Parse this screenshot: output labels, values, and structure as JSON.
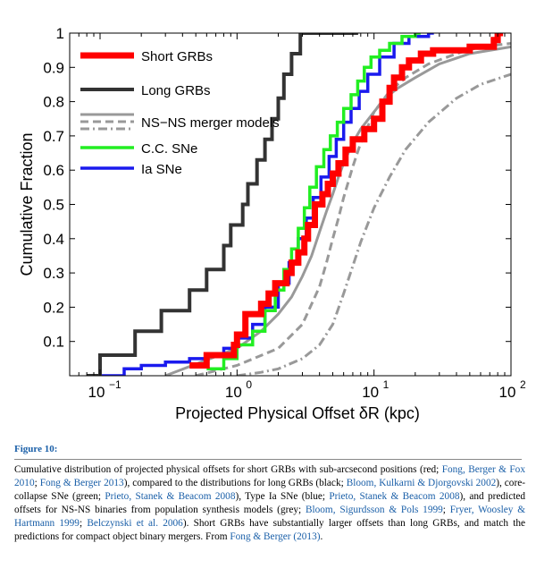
{
  "chart_data": {
    "type": "line",
    "xlabel": "Projected Physical Offset δR  (kpc)",
    "ylabel": "Cumulative Fraction",
    "xscale": "log",
    "xlim": [
      0.06,
      100
    ],
    "ylim": [
      0,
      1
    ],
    "x_ticks": [
      {
        "value": 0.1,
        "base": "10",
        "exp": "−1"
      },
      {
        "value": 1,
        "base": "10",
        "exp": "0"
      },
      {
        "value": 10,
        "base": "10",
        "exp": "1"
      },
      {
        "value": 100,
        "base": "10",
        "exp": "2"
      }
    ],
    "y_ticks": [
      "0.1",
      "0.2",
      "0.3",
      "0.4",
      "0.5",
      "0.6",
      "0.7",
      "0.8",
      "0.9",
      "1"
    ],
    "grid": false,
    "legend_position": "top-left",
    "series": [
      {
        "name": "Short GRBs",
        "color": "#ff0000",
        "step": true,
        "x": [
          0.45,
          0.6,
          0.95,
          1.0,
          1.15,
          1.5,
          1.7,
          1.9,
          2.3,
          2.5,
          2.8,
          3.1,
          3.3,
          3.7,
          4.2,
          4.6,
          5.0,
          5.5,
          6.2,
          7.0,
          8.5,
          10.0,
          11.5,
          13.0,
          14.0,
          16.0,
          18.0,
          22.0,
          27.0,
          35.0,
          50.0,
          75.0,
          80.0
        ],
        "y": [
          0.03,
          0.06,
          0.09,
          0.12,
          0.18,
          0.21,
          0.24,
          0.27,
          0.3,
          0.33,
          0.36,
          0.4,
          0.44,
          0.5,
          0.53,
          0.56,
          0.59,
          0.62,
          0.66,
          0.69,
          0.72,
          0.75,
          0.8,
          0.84,
          0.87,
          0.9,
          0.92,
          0.94,
          0.95,
          0.95,
          0.96,
          0.98,
          1.0
        ]
      },
      {
        "name": "Long GRBs",
        "color": "#333333",
        "step": true,
        "x": [
          0.08,
          0.1,
          0.18,
          0.28,
          0.45,
          0.6,
          0.8,
          0.9,
          1.1,
          1.2,
          1.4,
          1.6,
          1.8,
          2.0,
          2.2,
          2.5,
          2.9,
          3.3,
          3.8,
          4.3,
          5.0,
          5.8,
          6.5,
          7.0
        ],
        "y": [
          0.0,
          0.06,
          0.13,
          0.19,
          0.25,
          0.31,
          0.38,
          0.44,
          0.5,
          0.56,
          0.63,
          0.69,
          0.75,
          0.81,
          0.88,
          0.94,
          1.0,
          1.0,
          1.0,
          1.0,
          1.0,
          1.0,
          1.0,
          1.0
        ]
      },
      {
        "name": "C.C. SNe",
        "color": "#22ee22",
        "step": true,
        "x": [
          0.6,
          0.8,
          1.0,
          1.3,
          1.6,
          1.9,
          2.2,
          2.5,
          2.8,
          3.1,
          3.4,
          3.8,
          4.3,
          4.8,
          5.4,
          6.0,
          6.8,
          7.6,
          8.5,
          9.5,
          11.0,
          13.0,
          16.0,
          20.0
        ],
        "y": [
          0.02,
          0.05,
          0.09,
          0.13,
          0.19,
          0.25,
          0.31,
          0.37,
          0.43,
          0.49,
          0.55,
          0.61,
          0.66,
          0.7,
          0.74,
          0.78,
          0.82,
          0.86,
          0.9,
          0.93,
          0.95,
          0.97,
          0.99,
          1.0
        ]
      },
      {
        "name": "Ia SNe",
        "color": "#1a1aee",
        "step": true,
        "x": [
          0.1,
          0.15,
          0.2,
          0.3,
          0.45,
          0.6,
          0.8,
          1.0,
          1.3,
          1.6,
          2.0,
          2.4,
          2.8,
          3.2,
          3.6,
          4.1,
          4.7,
          5.3,
          6.0,
          6.8,
          7.8,
          9.0,
          11.0,
          14.0,
          18.0,
          25.0
        ],
        "y": [
          0.0,
          0.02,
          0.03,
          0.04,
          0.05,
          0.06,
          0.08,
          0.11,
          0.15,
          0.2,
          0.27,
          0.33,
          0.4,
          0.46,
          0.52,
          0.58,
          0.64,
          0.69,
          0.74,
          0.78,
          0.83,
          0.88,
          0.93,
          0.97,
          0.99,
          1.0
        ]
      },
      {
        "name": "NS−NS merger models",
        "color": "#999999",
        "step": false,
        "dash": "solid",
        "x": [
          0.3,
          1.0,
          1.5,
          2.0,
          2.5,
          3.0,
          3.5,
          4.0,
          4.5,
          5.0,
          5.5,
          6.0,
          7.0,
          8.0,
          10.0,
          12.0,
          15.0,
          20.0,
          30.0,
          50.0,
          100.0
        ],
        "y": [
          0.0,
          0.08,
          0.13,
          0.18,
          0.23,
          0.29,
          0.35,
          0.42,
          0.48,
          0.53,
          0.58,
          0.62,
          0.68,
          0.72,
          0.77,
          0.81,
          0.84,
          0.87,
          0.91,
          0.94,
          0.96
        ]
      },
      {
        "name": "",
        "color": "#999999",
        "step": false,
        "dash": "dashed",
        "x": [
          0.5,
          1.0,
          2.0,
          3.0,
          4.0,
          4.5,
          5.0,
          5.5,
          6.0,
          7.0,
          8.0,
          10.0,
          13.0,
          17.0,
          25.0,
          40.0,
          60.0,
          100.0
        ],
        "y": [
          0.0,
          0.03,
          0.08,
          0.15,
          0.26,
          0.33,
          0.4,
          0.46,
          0.52,
          0.61,
          0.68,
          0.77,
          0.83,
          0.87,
          0.91,
          0.94,
          0.96,
          0.97
        ]
      },
      {
        "name": "",
        "color": "#999999",
        "step": false,
        "dash": "dashdot",
        "x": [
          1.0,
          1.5,
          2.0,
          3.0,
          4.0,
          5.0,
          6.0,
          7.0,
          8.0,
          10.0,
          13.0,
          17.0,
          25.0,
          40.0,
          60.0,
          100.0
        ],
        "y": [
          0.0,
          0.01,
          0.02,
          0.05,
          0.09,
          0.15,
          0.24,
          0.32,
          0.39,
          0.49,
          0.58,
          0.66,
          0.74,
          0.81,
          0.85,
          0.88
        ]
      }
    ]
  },
  "figure_label": "Figure 10:",
  "caption": [
    {
      "text": "Cumulative distribution of projected physical offsets for short GRBs with sub-arcsecond positions (red; ",
      "ref": false
    },
    {
      "text": "Fong, Berger & Fox 2010",
      "ref": true
    },
    {
      "text": "; ",
      "ref": false
    },
    {
      "text": "Fong & Berger 2013",
      "ref": true
    },
    {
      "text": "), compared to the distributions for long GRBs (black; ",
      "ref": false
    },
    {
      "text": "Bloom, Kulkarni & Djorgovski 2002",
      "ref": true
    },
    {
      "text": "), core-collapse SNe (green; ",
      "ref": false
    },
    {
      "text": "Prieto, Stanek & Beacom 2008",
      "ref": true
    },
    {
      "text": "), Type Ia SNe (blue; ",
      "ref": false
    },
    {
      "text": "Prieto, Stanek & Beacom 2008",
      "ref": true
    },
    {
      "text": "), and predicted offsets for NS-NS binaries from population synthesis models (grey; ",
      "ref": false
    },
    {
      "text": "Bloom, Sigurdsson & Pols 1999",
      "ref": true
    },
    {
      "text": "; ",
      "ref": false
    },
    {
      "text": "Fryer, Woosley & Hartmann 1999",
      "ref": true
    },
    {
      "text": "; ",
      "ref": false
    },
    {
      "text": "Belczynski et al. 2006",
      "ref": true
    },
    {
      "text": "). Short GRBs have substantially larger offsets than long GRBs, and match the predictions for compact object binary mergers. From ",
      "ref": false
    },
    {
      "text": "Fong & Berger (2013)",
      "ref": true
    },
    {
      "text": ".",
      "ref": false
    }
  ]
}
